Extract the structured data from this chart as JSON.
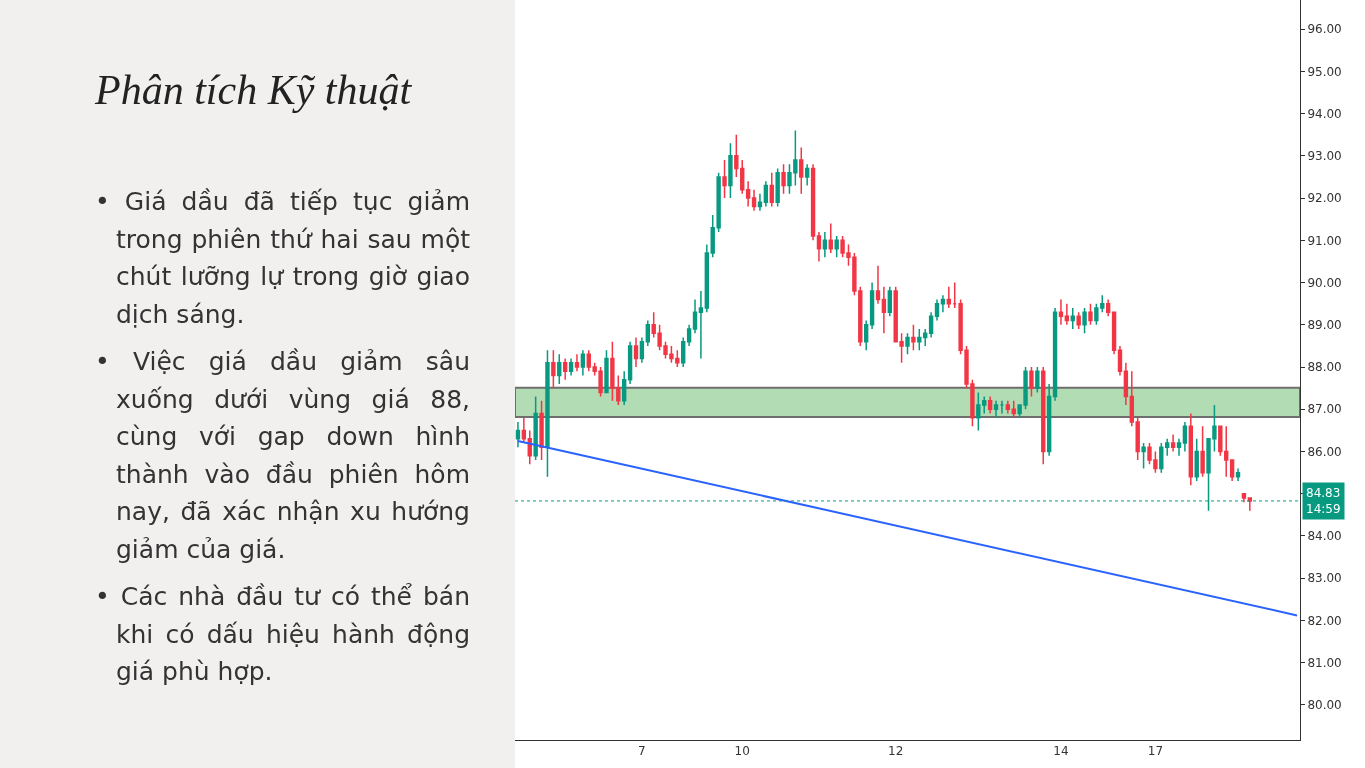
{
  "chart_data": {
    "type": "candlestick",
    "title": "Phân tích Kỹ thuật",
    "annotations": [
      "• Giá dầu đã tiếp tục giảm trong phiên thứ hai sau một chút lưỡng lự trong giờ giao dịch sáng.",
      "• Việc giá dầu giảm sâu xuống dưới vùng giá 88, cùng với gap down hình thành vào đầu phiên hôm nay, đã xác nhận xu hướng giảm của giá.",
      "• Các nhà đầu tư có thể bán khi có dấu hiệu hành động giá phù hợp.",
      {
        "text": "14:59",
        "y": 84.83
      }
    ],
    "categories": [
      null,
      null,
      null,
      null,
      null,
      null,
      null,
      null,
      null,
      null,
      null,
      null,
      null,
      null,
      null,
      null,
      null,
      null,
      null,
      null,
      null,
      "7",
      null,
      null,
      null,
      null,
      null,
      null,
      null,
      null,
      null,
      null,
      null,
      null,
      null,
      null,
      null,
      null,
      "10",
      null,
      null,
      null,
      null,
      null,
      null,
      null,
      null,
      null,
      null,
      null,
      null,
      null,
      null,
      null,
      null,
      null,
      null,
      null,
      null,
      null,
      null,
      null,
      null,
      null,
      "12",
      null,
      null,
      null,
      null,
      null,
      null,
      null,
      null,
      null,
      null,
      null,
      null,
      null,
      null,
      null,
      null,
      null,
      null,
      null,
      null,
      null,
      null,
      null,
      null,
      null,
      null,
      null,
      "14",
      null,
      null,
      null,
      null,
      null,
      null,
      null,
      null,
      null,
      null,
      null,
      null,
      null,
      null,
      null,
      "17",
      null,
      null,
      null,
      null,
      null,
      null,
      null,
      null,
      null,
      null,
      null,
      null,
      null,
      null,
      null,
      null,
      null,
      null,
      null,
      null,
      null,
      null,
      null,
      null
    ],
    "ohlc": [
      [
        86.3,
        86.7,
        86.1,
        86.5
      ],
      [
        86.5,
        86.8,
        86.2,
        86.3
      ],
      [
        86.3,
        86.5,
        85.7,
        85.9
      ],
      [
        85.9,
        87.3,
        85.8,
        86.9
      ],
      [
        86.9,
        87.2,
        85.8,
        86.1
      ],
      [
        86.1,
        88.4,
        85.4,
        88.1
      ],
      [
        88.1,
        88.4,
        87.5,
        87.8
      ],
      [
        87.8,
        88.3,
        87.6,
        88.1
      ],
      [
        88.1,
        88.2,
        87.7,
        87.9
      ],
      [
        87.9,
        88.2,
        87.8,
        88.1
      ],
      [
        88.1,
        88.3,
        87.9,
        88.0
      ],
      [
        88.0,
        88.4,
        87.8,
        88.3
      ],
      [
        88.3,
        88.4,
        87.9,
        88.0
      ],
      [
        88.0,
        88.1,
        87.8,
        87.9
      ],
      [
        87.9,
        88.0,
        87.3,
        87.4
      ],
      [
        87.4,
        88.4,
        87.4,
        88.2
      ],
      [
        88.2,
        88.6,
        87.2,
        87.5
      ],
      [
        87.5,
        87.8,
        87.1,
        87.2
      ],
      [
        87.2,
        87.9,
        87.1,
        87.7
      ],
      [
        87.7,
        88.6,
        87.6,
        88.5
      ],
      [
        88.5,
        88.7,
        88.0,
        88.2
      ],
      [
        88.2,
        88.7,
        88.1,
        88.6
      ],
      [
        88.6,
        89.1,
        88.5,
        89.0
      ],
      [
        89.0,
        89.3,
        88.7,
        88.8
      ],
      [
        88.8,
        89.0,
        88.4,
        88.5
      ],
      [
        88.5,
        88.6,
        88.2,
        88.3
      ],
      [
        88.3,
        88.5,
        88.1,
        88.2
      ],
      [
        88.2,
        88.4,
        88.0,
        88.1
      ],
      [
        88.1,
        88.7,
        88.0,
        88.6
      ],
      [
        88.6,
        89.0,
        88.5,
        88.9
      ],
      [
        88.9,
        89.6,
        88.8,
        89.3
      ],
      [
        89.3,
        89.8,
        88.2,
        89.4
      ],
      [
        89.4,
        90.9,
        89.3,
        90.7
      ],
      [
        90.7,
        91.6,
        90.6,
        91.3
      ],
      [
        91.3,
        92.6,
        91.2,
        92.5
      ],
      [
        92.5,
        92.9,
        92.0,
        92.3
      ],
      [
        92.3,
        93.3,
        92.0,
        93.0
      ],
      [
        93.0,
        93.5,
        92.5,
        92.7
      ],
      [
        92.7,
        92.9,
        92.1,
        92.2
      ],
      [
        92.2,
        92.4,
        91.8,
        92.0
      ],
      [
        92.0,
        92.2,
        91.7,
        91.8
      ],
      [
        91.8,
        92.1,
        91.7,
        91.9
      ],
      [
        91.9,
        92.4,
        91.8,
        92.3
      ],
      [
        92.3,
        92.6,
        91.8,
        91.9
      ],
      [
        91.9,
        92.7,
        91.8,
        92.6
      ],
      [
        92.6,
        92.8,
        92.1,
        92.3
      ],
      [
        92.3,
        92.8,
        92.1,
        92.6
      ],
      [
        92.6,
        93.6,
        92.3,
        92.9
      ],
      [
        92.9,
        93.2,
        92.1,
        92.5
      ],
      [
        92.5,
        92.8,
        92.3,
        92.7
      ],
      [
        92.7,
        92.8,
        91.0,
        91.1
      ],
      [
        91.1,
        91.2,
        90.5,
        90.8
      ],
      [
        90.8,
        91.2,
        90.6,
        91.0
      ],
      [
        91.0,
        91.4,
        90.7,
        90.8
      ],
      [
        90.8,
        91.1,
        90.6,
        91.0
      ],
      [
        91.0,
        91.1,
        90.6,
        90.7
      ],
      [
        90.7,
        90.9,
        90.4,
        90.6
      ],
      [
        90.6,
        90.7,
        89.7,
        89.8
      ],
      [
        89.8,
        89.9,
        88.5,
        88.6
      ],
      [
        88.6,
        89.1,
        88.4,
        89.0
      ],
      [
        89.0,
        90.0,
        88.9,
        89.8
      ],
      [
        89.8,
        90.4,
        89.5,
        89.6
      ],
      [
        89.6,
        89.9,
        88.8,
        89.3
      ],
      [
        89.3,
        89.9,
        89.2,
        89.8
      ],
      [
        89.8,
        89.9,
        88.6,
        88.6
      ],
      [
        88.6,
        88.8,
        88.1,
        88.5
      ],
      [
        88.5,
        88.8,
        88.3,
        88.7
      ],
      [
        88.7,
        89.0,
        88.4,
        88.6
      ],
      [
        88.6,
        88.9,
        88.4,
        88.7
      ],
      [
        88.7,
        88.9,
        88.5,
        88.8
      ],
      [
        88.8,
        89.3,
        88.7,
        89.2
      ],
      [
        89.2,
        89.6,
        89.1,
        89.5
      ],
      [
        89.5,
        89.7,
        89.3,
        89.6
      ],
      [
        89.6,
        89.9,
        89.4,
        89.5
      ],
      [
        89.5,
        90.0,
        89.4,
        89.5
      ],
      [
        89.5,
        89.6,
        88.3,
        88.4
      ],
      [
        88.4,
        88.5,
        87.5,
        87.6
      ],
      [
        87.6,
        87.7,
        86.6,
        86.8
      ],
      [
        86.8,
        87.4,
        86.5,
        87.1
      ],
      [
        87.1,
        87.3,
        86.9,
        87.2
      ],
      [
        87.2,
        87.3,
        86.9,
        87.0
      ],
      [
        87.0,
        87.2,
        86.8,
        87.1
      ],
      [
        87.1,
        87.2,
        86.9,
        87.1
      ],
      [
        87.1,
        87.2,
        86.9,
        87.0
      ],
      [
        87.0,
        87.2,
        86.8,
        86.9
      ],
      [
        86.9,
        87.1,
        86.8,
        87.1
      ],
      [
        87.1,
        88.0,
        87.0,
        87.9
      ],
      [
        87.9,
        88.0,
        87.3,
        87.5
      ],
      [
        87.5,
        88.0,
        87.4,
        87.9
      ],
      [
        87.9,
        88.0,
        85.7,
        86.0
      ],
      [
        86.0,
        87.6,
        85.9,
        87.3
      ],
      [
        87.3,
        89.4,
        87.2,
        89.3
      ],
      [
        89.3,
        89.6,
        89.0,
        89.2
      ],
      [
        89.2,
        89.5,
        89.0,
        89.1
      ],
      [
        89.1,
        89.4,
        88.9,
        89.2
      ],
      [
        89.2,
        89.3,
        88.9,
        89.0
      ],
      [
        89.0,
        89.4,
        88.8,
        89.3
      ],
      [
        89.3,
        89.5,
        89.0,
        89.1
      ],
      [
        89.1,
        89.5,
        89.0,
        89.4
      ],
      [
        89.4,
        89.7,
        89.3,
        89.5
      ],
      [
        89.5,
        89.6,
        89.2,
        89.3
      ],
      [
        89.3,
        89.3,
        88.3,
        88.4
      ],
      [
        88.4,
        88.5,
        87.8,
        87.9
      ],
      [
        87.9,
        88.1,
        87.1,
        87.3
      ],
      [
        87.3,
        87.9,
        86.6,
        86.7
      ],
      [
        86.7,
        86.8,
        85.8,
        86.0
      ],
      [
        86.0,
        86.2,
        85.6,
        86.1
      ],
      [
        86.1,
        86.2,
        85.7,
        85.8
      ],
      [
        85.8,
        86.0,
        85.5,
        85.6
      ],
      [
        85.6,
        86.2,
        85.5,
        86.1
      ],
      [
        86.1,
        86.3,
        85.9,
        86.2
      ],
      [
        86.2,
        86.4,
        86.0,
        86.1
      ],
      [
        86.1,
        86.3,
        85.9,
        86.2
      ],
      [
        86.2,
        86.7,
        86.0,
        86.6
      ],
      [
        86.6,
        86.9,
        85.2,
        85.4
      ],
      [
        85.4,
        86.3,
        85.3,
        86.0
      ],
      [
        86.0,
        86.6,
        85.4,
        85.5
      ],
      [
        85.5,
        86.3,
        84.6,
        86.3
      ],
      [
        86.3,
        87.1,
        86.0,
        86.6
      ],
      [
        86.6,
        86.6,
        85.9,
        86.0
      ],
      [
        86.0,
        86.6,
        85.4,
        85.8
      ],
      [
        85.8,
        85.8,
        85.3,
        85.4
      ],
      [
        85.4,
        85.6,
        85.3,
        85.5
      ],
      [
        85.0,
        85.0,
        84.8,
        84.9
      ],
      [
        84.9,
        84.9,
        84.6,
        84.83
      ],
      null,
      null,
      null,
      null,
      null,
      null,
      null,
      null
    ],
    "series": [
      {
        "type": "line",
        "values": [
          86.25,
          null,
          null,
          null,
          null,
          null,
          null,
          null,
          null,
          null,
          null,
          null,
          null,
          null,
          null,
          null,
          null,
          null,
          null,
          null,
          null,
          null,
          null,
          null,
          null,
          null,
          null,
          null,
          null,
          null,
          null,
          null,
          null,
          null,
          null,
          null,
          null,
          null,
          null,
          null,
          null,
          null,
          null,
          null,
          null,
          null,
          null,
          null,
          null,
          null,
          null,
          null,
          null,
          null,
          null,
          null,
          null,
          null,
          null,
          null,
          null,
          null,
          null,
          null,
          null,
          null,
          null,
          null,
          null,
          null,
          null,
          null,
          null,
          null,
          null,
          null,
          null,
          null,
          null,
          null,
          null,
          null,
          null,
          null,
          null,
          null,
          null,
          null,
          null,
          null,
          null,
          null,
          null,
          null,
          null,
          null,
          null,
          null,
          null,
          null,
          null,
          null,
          null,
          null,
          null,
          null,
          null,
          null,
          null,
          null,
          null,
          null,
          null,
          null,
          null,
          null,
          null,
          null,
          null,
          null,
          null,
          null,
          null,
          null,
          null,
          null,
          null,
          null,
          null,
          null,
          null,
          null,
          82.12
        ],
        "color": "#2962ff"
      }
    ],
    "ylim": [
      79.17,
      96.69
    ],
    "yticks": [
      {
        "value": 80,
        "label": "80.00"
      },
      {
        "value": 81,
        "label": "81.00"
      },
      {
        "value": 82,
        "label": "82.00"
      },
      {
        "value": 83,
        "label": "83.00"
      },
      {
        "value": 84,
        "label": "84.00"
      },
      {
        "value": 85,
        "label": null
      },
      {
        "value": 86,
        "label": "86.00"
      },
      {
        "value": 87,
        "label": "87.00"
      },
      {
        "value": 88,
        "label": "88.00"
      },
      {
        "value": 89,
        "label": "89.00"
      },
      {
        "value": 90,
        "label": "90.00"
      },
      {
        "value": 91,
        "label": "91.00"
      },
      {
        "value": 92,
        "label": "92.00"
      },
      {
        "value": 93,
        "label": "93.00"
      },
      {
        "value": 94,
        "label": "94.00"
      },
      {
        "value": 95,
        "label": "95.00"
      },
      {
        "value": 96,
        "label": "96.00"
      }
    ],
    "bands": [
      {
        "axis": "y",
        "from": 86.82,
        "to": 87.51,
        "color": "#a5d6a7"
      }
    ],
    "ref_lines": [
      {
        "axis": "y",
        "value": 84.83,
        "label": "84.83",
        "color": "#089981",
        "line_style": "dotted"
      }
    ]
  }
}
